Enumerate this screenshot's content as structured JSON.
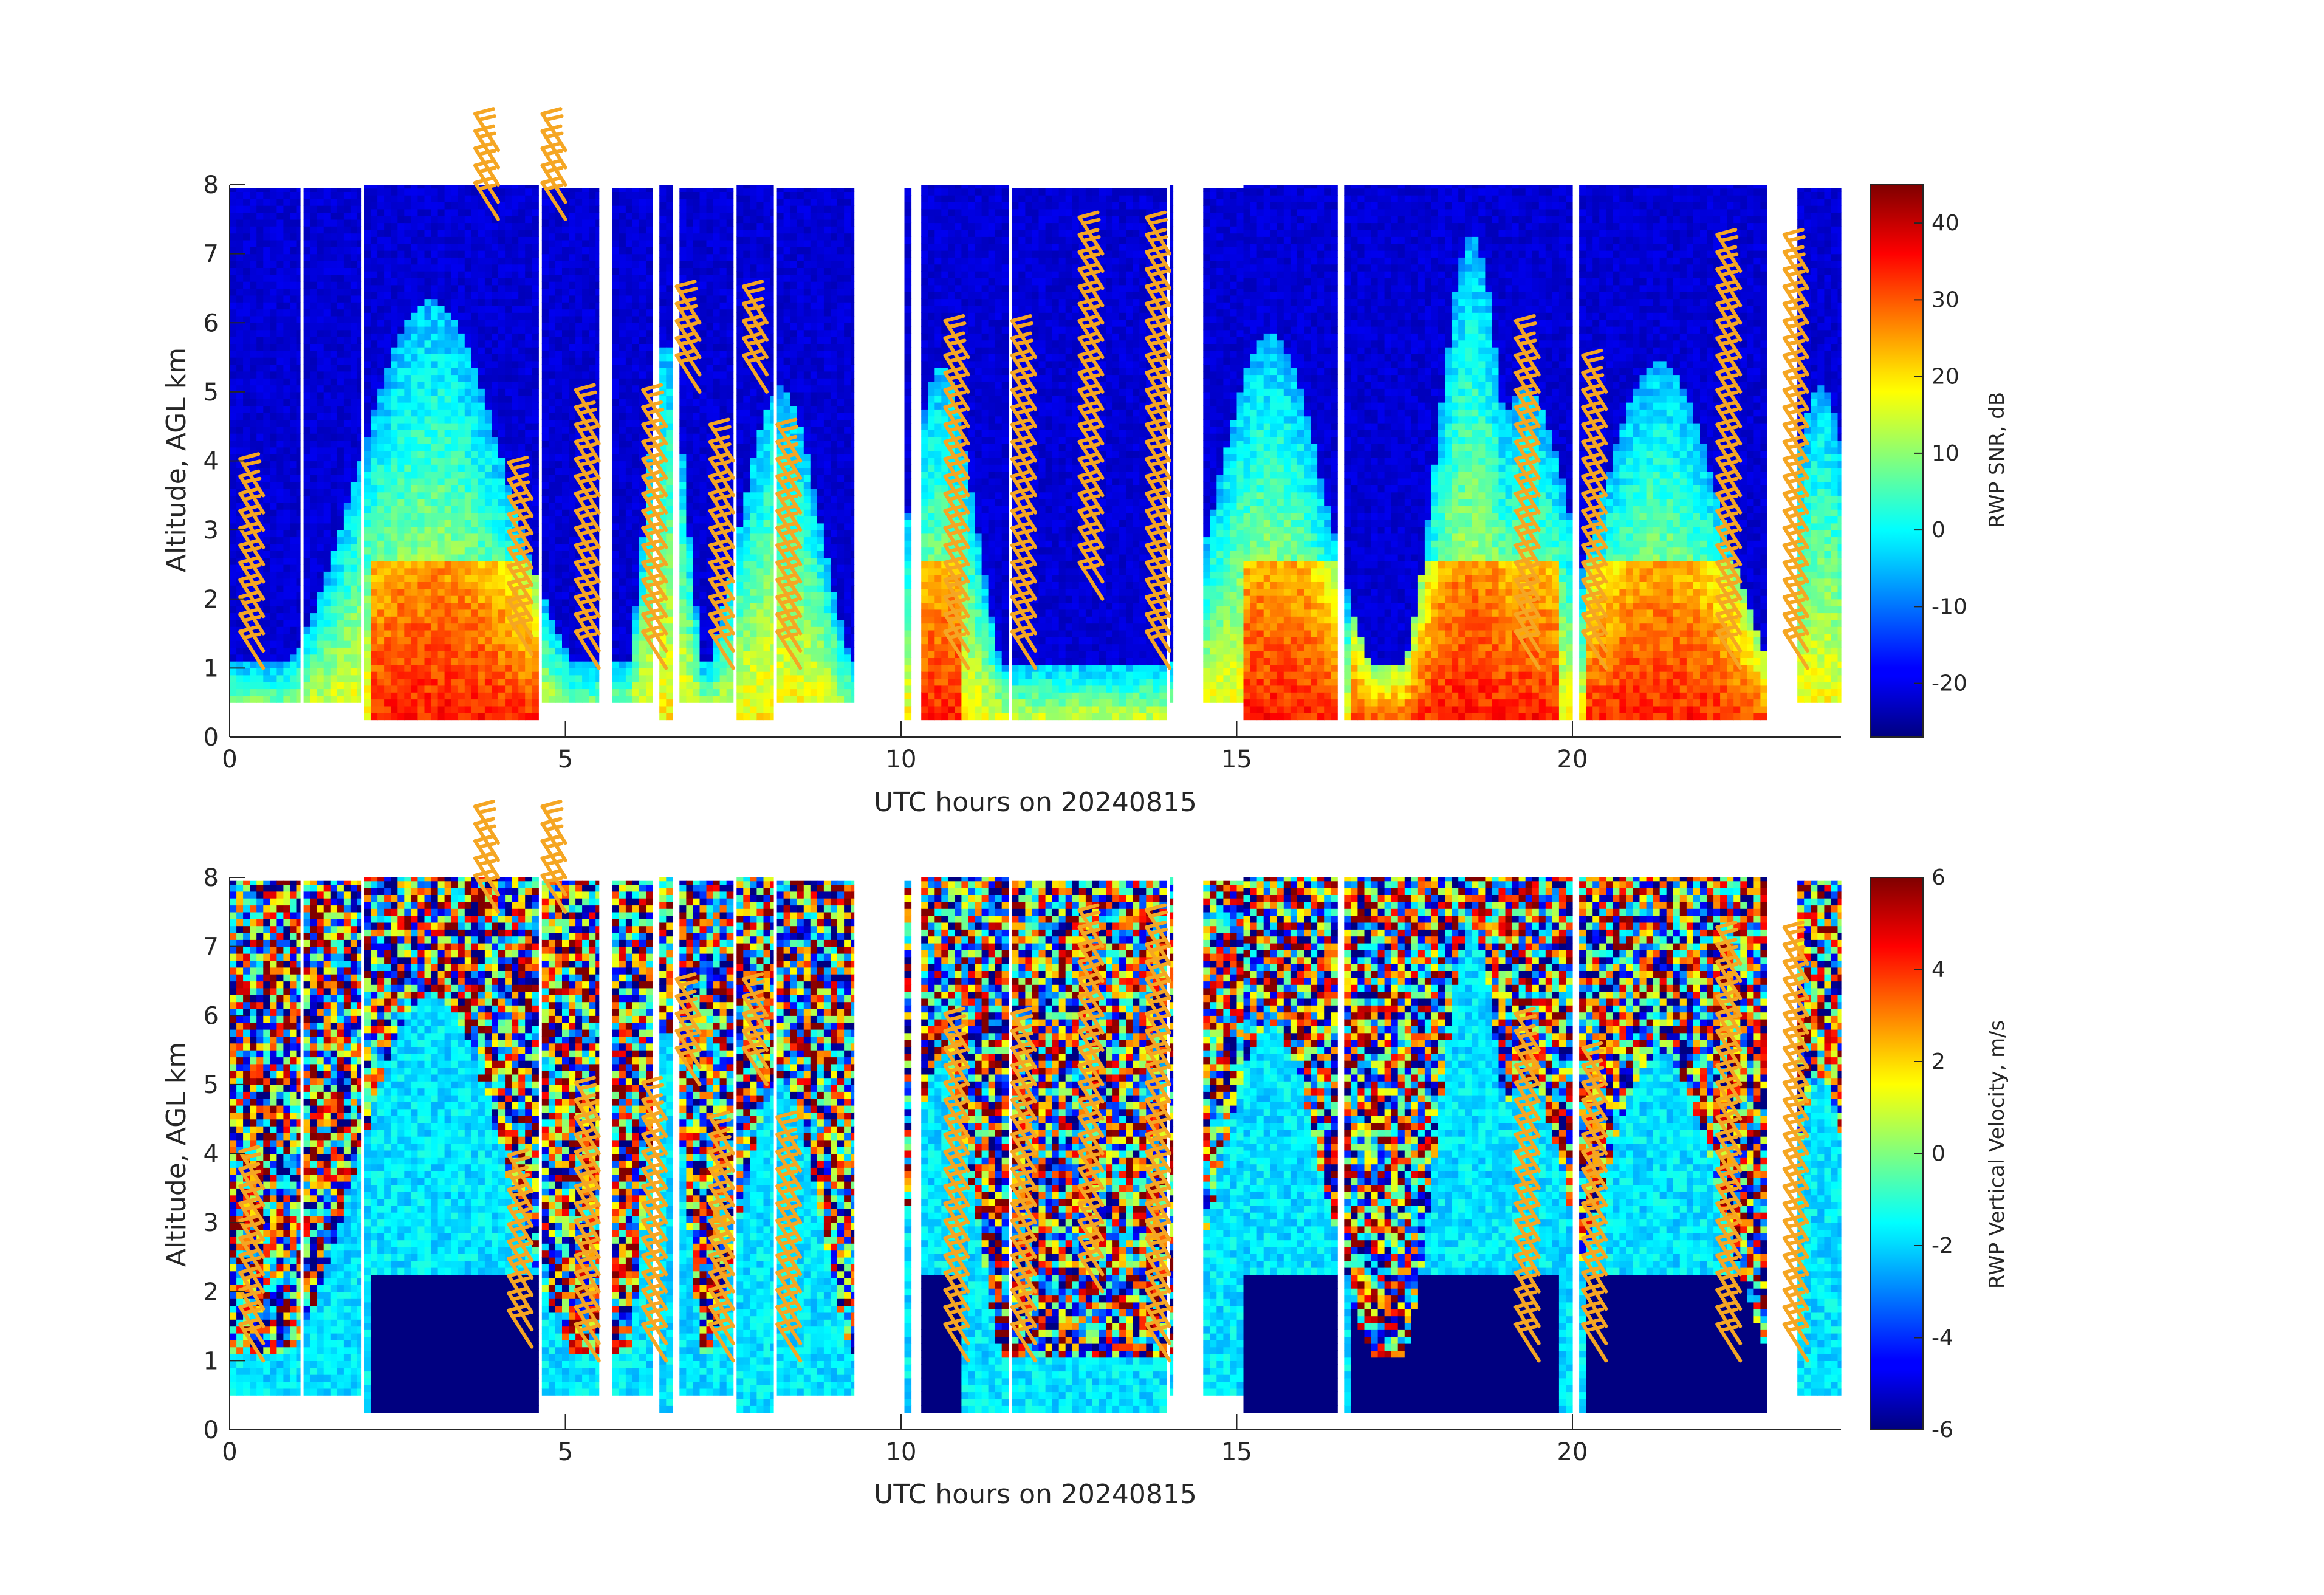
{
  "chart_data": [
    {
      "type": "heatmap",
      "panel_id": "snr",
      "xlabel": "UTC hours on 20240815",
      "ylabel": "Altitude, AGL km",
      "xlim": [
        0,
        24
      ],
      "ylim": [
        0,
        8
      ],
      "xticks": [
        0,
        5,
        10,
        15,
        20
      ],
      "yticks": [
        0,
        1,
        2,
        3,
        4,
        5,
        6,
        7,
        8
      ],
      "colorbar": {
        "label": "RWP SNR, dB",
        "range": [
          -27,
          45
        ],
        "ticks": [
          -20,
          -10,
          0,
          10,
          20,
          30,
          40
        ],
        "colormap": "jet"
      },
      "barb_color": "#f5a623"
    },
    {
      "type": "heatmap",
      "panel_id": "vv",
      "xlabel": "UTC hours on 20240815",
      "ylabel": "Altitude, AGL km",
      "xlim": [
        0,
        24
      ],
      "ylim": [
        0,
        8
      ],
      "xticks": [
        0,
        5,
        10,
        15,
        20
      ],
      "yticks": [
        0,
        1,
        2,
        3,
        4,
        5,
        6,
        7,
        8
      ],
      "colorbar": {
        "label": "RWP Vertical Velocity, m/s",
        "range": [
          -6,
          6
        ],
        "ticks": [
          -6,
          -4,
          -2,
          0,
          2,
          4,
          6
        ],
        "colormap": "jet"
      },
      "barb_color": "#f5a623"
    }
  ],
  "data_segments": [
    {
      "t0": 0.0,
      "t1": 1.05,
      "hmax": 7.95,
      "hmin": 0.5
    },
    {
      "t0": 1.1,
      "t1": 1.95,
      "hmax": 7.95,
      "hmin": 0.5
    },
    {
      "t0": 2.0,
      "t1": 4.6,
      "hmax": 8.0,
      "hmin": 0.25
    },
    {
      "t0": 4.65,
      "t1": 5.5,
      "hmax": 7.95,
      "hmin": 0.5
    },
    {
      "t0": 5.7,
      "t1": 6.3,
      "hmax": 7.95,
      "hmin": 0.5
    },
    {
      "t0": 6.4,
      "t1": 6.6,
      "hmax": 8.0,
      "hmin": 0.25
    },
    {
      "t0": 6.7,
      "t1": 7.5,
      "hmax": 7.95,
      "hmin": 0.5
    },
    {
      "t0": 7.55,
      "t1": 8.1,
      "hmax": 8.0,
      "hmin": 0.25
    },
    {
      "t0": 8.15,
      "t1": 9.3,
      "hmax": 7.95,
      "hmin": 0.5
    },
    {
      "t0": 10.05,
      "t1": 10.15,
      "hmax": 7.95,
      "hmin": 0.25
    },
    {
      "t0": 10.3,
      "t1": 11.6,
      "hmax": 8.0,
      "hmin": 0.25
    },
    {
      "t0": 11.65,
      "t1": 13.95,
      "hmax": 7.95,
      "hmin": 0.25
    },
    {
      "t0": 14.0,
      "t1": 14.05,
      "hmax": 8.0,
      "hmin": 0.5
    },
    {
      "t0": 14.5,
      "t1": 15.1,
      "hmax": 7.95,
      "hmin": 0.5
    },
    {
      "t0": 15.1,
      "t1": 16.5,
      "hmax": 8.0,
      "hmin": 0.25
    },
    {
      "t0": 16.6,
      "t1": 20.0,
      "hmax": 8.0,
      "hmin": 0.25
    },
    {
      "t0": 20.1,
      "t1": 22.9,
      "hmax": 8.0,
      "hmin": 0.25
    },
    {
      "t0": 23.35,
      "t1": 24.0,
      "hmax": 7.95,
      "hmin": 0.5
    }
  ],
  "barb_columns": [
    {
      "t": 0.5,
      "hmin": 1.0,
      "hmax": 3.5
    },
    {
      "t": 4.0,
      "hmin": 7.5,
      "hmax": 8.5
    },
    {
      "t": 4.5,
      "hmin": 1.2,
      "hmax": 3.5
    },
    {
      "t": 5.0,
      "hmin": 7.5,
      "hmax": 8.5
    },
    {
      "t": 5.5,
      "hmin": 1.0,
      "hmax": 4.5
    },
    {
      "t": 6.5,
      "hmin": 1.0,
      "hmax": 4.5
    },
    {
      "t": 7.0,
      "hmin": 5.0,
      "hmax": 6.0
    },
    {
      "t": 7.5,
      "hmin": 1.0,
      "hmax": 4.0
    },
    {
      "t": 8.0,
      "hmin": 5.0,
      "hmax": 6.0
    },
    {
      "t": 8.5,
      "hmin": 1.0,
      "hmax": 4.0
    },
    {
      "t": 11.0,
      "hmin": 1.0,
      "hmax": 5.5
    },
    {
      "t": 12.0,
      "hmin": 1.0,
      "hmax": 5.5
    },
    {
      "t": 13.0,
      "hmin": 2.0,
      "hmax": 7.0
    },
    {
      "t": 14.0,
      "hmin": 1.0,
      "hmax": 7.0
    },
    {
      "t": 19.5,
      "hmin": 1.0,
      "hmax": 5.5
    },
    {
      "t": 20.5,
      "hmin": 1.0,
      "hmax": 5.0
    },
    {
      "t": 22.5,
      "hmin": 1.0,
      "hmax": 6.8
    },
    {
      "t": 23.5,
      "hmin": 1.0,
      "hmax": 6.8
    }
  ]
}
